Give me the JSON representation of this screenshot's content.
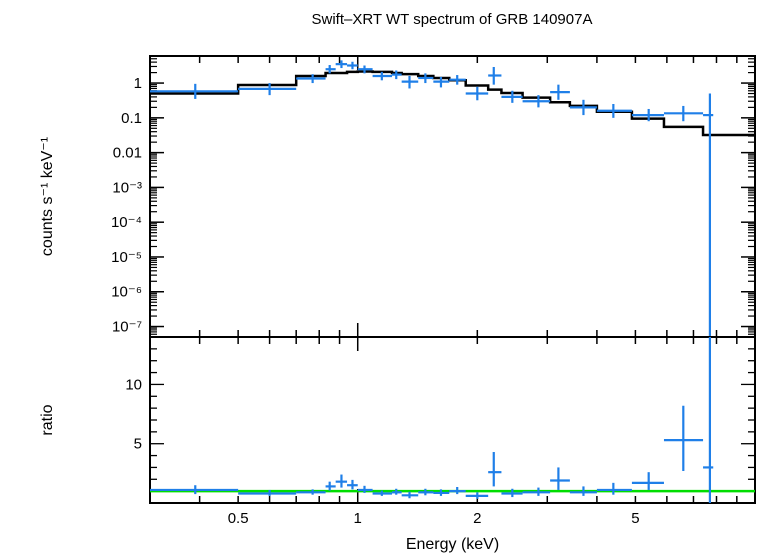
{
  "chart_data": [
    {
      "type": "line",
      "panel": "spectrum",
      "title": "Swift–XRT WT spectrum of GRB 140907A",
      "xlabel": "Energy (keV)",
      "ylabel": "counts s⁻¹ keV⁻¹",
      "x_scale": "log",
      "y_scale": "log",
      "xlim": [
        0.3,
        10
      ],
      "ylim": [
        5e-08,
        6
      ],
      "y_ticks": [
        {
          "value": 1,
          "label": "1"
        },
        {
          "value": 0.1,
          "label": "0.1"
        },
        {
          "value": 0.01,
          "label": "0.01"
        },
        {
          "value": 0.001,
          "label": "10⁻³"
        },
        {
          "value": 0.0001,
          "label": "10⁻⁴"
        },
        {
          "value": 1e-05,
          "label": "10⁻⁵"
        },
        {
          "value": 1e-06,
          "label": "10⁻⁶"
        },
        {
          "value": 1e-07,
          "label": "10⁻⁷"
        }
      ],
      "grid": false,
      "colors": {
        "data": "#1f7fe8",
        "model": "#000000"
      },
      "data_points": [
        {
          "x": 0.39,
          "xlo": 0.3,
          "xhi": 0.5,
          "y": 0.58,
          "ylo": 0.35,
          "yhi": 0.95
        },
        {
          "x": 0.6,
          "xlo": 0.5,
          "xhi": 0.7,
          "y": 0.68,
          "ylo": 0.45,
          "yhi": 1.0
        },
        {
          "x": 0.77,
          "xlo": 0.7,
          "xhi": 0.83,
          "y": 1.35,
          "ylo": 1.0,
          "yhi": 1.8
        },
        {
          "x": 0.85,
          "xlo": 0.83,
          "xhi": 0.88,
          "y": 2.5,
          "ylo": 1.9,
          "yhi": 3.3
        },
        {
          "x": 0.91,
          "xlo": 0.88,
          "xhi": 0.94,
          "y": 3.5,
          "ylo": 2.7,
          "yhi": 4.5
        },
        {
          "x": 0.97,
          "xlo": 0.94,
          "xhi": 1.0,
          "y": 3.2,
          "ylo": 2.5,
          "yhi": 4.1
        },
        {
          "x": 1.04,
          "xlo": 1.0,
          "xhi": 1.09,
          "y": 2.5,
          "ylo": 1.9,
          "yhi": 3.2
        },
        {
          "x": 1.15,
          "xlo": 1.09,
          "xhi": 1.22,
          "y": 1.6,
          "ylo": 1.2,
          "yhi": 2.1
        },
        {
          "x": 1.25,
          "xlo": 1.22,
          "xhi": 1.29,
          "y": 1.75,
          "ylo": 1.3,
          "yhi": 2.3
        },
        {
          "x": 1.35,
          "xlo": 1.29,
          "xhi": 1.42,
          "y": 1.1,
          "ylo": 0.7,
          "yhi": 1.6
        },
        {
          "x": 1.48,
          "xlo": 1.42,
          "xhi": 1.55,
          "y": 1.4,
          "ylo": 1.0,
          "yhi": 1.9
        },
        {
          "x": 1.62,
          "xlo": 1.55,
          "xhi": 1.7,
          "y": 1.1,
          "ylo": 0.75,
          "yhi": 1.5
        },
        {
          "x": 1.78,
          "xlo": 1.7,
          "xhi": 1.87,
          "y": 1.25,
          "ylo": 0.9,
          "yhi": 1.7
        },
        {
          "x": 2.0,
          "xlo": 1.87,
          "xhi": 2.13,
          "y": 0.5,
          "ylo": 0.32,
          "yhi": 0.78
        },
        {
          "x": 2.2,
          "xlo": 2.13,
          "xhi": 2.3,
          "y": 1.65,
          "ylo": 0.9,
          "yhi": 2.9
        },
        {
          "x": 2.45,
          "xlo": 2.3,
          "xhi": 2.6,
          "y": 0.4,
          "ylo": 0.27,
          "yhi": 0.6
        },
        {
          "x": 2.85,
          "xlo": 2.6,
          "xhi": 3.05,
          "y": 0.3,
          "ylo": 0.2,
          "yhi": 0.45
        },
        {
          "x": 3.2,
          "xlo": 3.05,
          "xhi": 3.42,
          "y": 0.55,
          "ylo": 0.33,
          "yhi": 0.9
        },
        {
          "x": 3.7,
          "xlo": 3.42,
          "xhi": 4.0,
          "y": 0.2,
          "ylo": 0.12,
          "yhi": 0.33
        },
        {
          "x": 4.4,
          "xlo": 4.0,
          "xhi": 4.9,
          "y": 0.16,
          "ylo": 0.1,
          "yhi": 0.25
        },
        {
          "x": 5.4,
          "xlo": 4.9,
          "xhi": 5.9,
          "y": 0.12,
          "ylo": 0.08,
          "yhi": 0.18
        },
        {
          "x": 6.6,
          "xlo": 5.9,
          "xhi": 7.4,
          "y": 0.135,
          "ylo": 0.08,
          "yhi": 0.22
        },
        {
          "x": 7.7,
          "xlo": 7.4,
          "xhi": 7.85,
          "y": 0.12,
          "ylo": 5e-08,
          "yhi": 0.5
        }
      ],
      "model_steps": [
        {
          "x": 0.3,
          "y": 0.5
        },
        {
          "x": 0.5,
          "y": 0.88
        },
        {
          "x": 0.7,
          "y": 1.6
        },
        {
          "x": 0.83,
          "y": 1.95
        },
        {
          "x": 0.94,
          "y": 2.1
        },
        {
          "x": 1.0,
          "y": 2.15
        },
        {
          "x": 1.09,
          "y": 2.1
        },
        {
          "x": 1.22,
          "y": 1.95
        },
        {
          "x": 1.29,
          "y": 1.8
        },
        {
          "x": 1.42,
          "y": 1.6
        },
        {
          "x": 1.55,
          "y": 1.4
        },
        {
          "x": 1.7,
          "y": 1.2
        },
        {
          "x": 1.87,
          "y": 0.85
        },
        {
          "x": 2.13,
          "y": 0.65
        },
        {
          "x": 2.3,
          "y": 0.52
        },
        {
          "x": 2.6,
          "y": 0.38
        },
        {
          "x": 3.05,
          "y": 0.28
        },
        {
          "x": 3.42,
          "y": 0.22
        },
        {
          "x": 4.0,
          "y": 0.15
        },
        {
          "x": 4.9,
          "y": 0.095
        },
        {
          "x": 5.9,
          "y": 0.055
        },
        {
          "x": 7.4,
          "y": 0.032
        },
        {
          "x": 7.85,
          "y": 0.032
        }
      ]
    },
    {
      "type": "scatter",
      "panel": "ratio",
      "xlabel": "Energy (keV)",
      "ylabel": "ratio",
      "x_scale": "log",
      "xlim": [
        0.3,
        10
      ],
      "ylim": [
        0,
        14
      ],
      "y_ticks": [
        {
          "value": 5,
          "label": "5"
        },
        {
          "value": 10,
          "label": "10"
        }
      ],
      "x_ticks": [
        {
          "value": 0.5,
          "label": "0.5"
        },
        {
          "value": 1,
          "label": "1"
        },
        {
          "value": 2,
          "label": "2"
        },
        {
          "value": 5,
          "label": "5"
        }
      ],
      "reference_line": {
        "y": 1,
        "color": "#00dd00"
      },
      "colors": {
        "data": "#1f7fe8"
      },
      "data_points": [
        {
          "x": 0.39,
          "xlo": 0.3,
          "xhi": 0.5,
          "y": 1.1,
          "ylo": 0.75,
          "yhi": 1.5
        },
        {
          "x": 0.6,
          "xlo": 0.5,
          "xhi": 0.7,
          "y": 0.8,
          "ylo": 0.6,
          "yhi": 1.1
        },
        {
          "x": 0.77,
          "xlo": 0.7,
          "xhi": 0.83,
          "y": 0.9,
          "ylo": 0.7,
          "yhi": 1.15
        },
        {
          "x": 0.85,
          "xlo": 0.83,
          "xhi": 0.88,
          "y": 1.4,
          "ylo": 1.05,
          "yhi": 1.8
        },
        {
          "x": 0.91,
          "xlo": 0.88,
          "xhi": 0.94,
          "y": 1.8,
          "ylo": 1.3,
          "yhi": 2.4
        },
        {
          "x": 0.97,
          "xlo": 0.94,
          "xhi": 1.0,
          "y": 1.5,
          "ylo": 1.15,
          "yhi": 1.95
        },
        {
          "x": 1.04,
          "xlo": 1.0,
          "xhi": 1.09,
          "y": 1.1,
          "ylo": 0.85,
          "yhi": 1.45
        },
        {
          "x": 1.15,
          "xlo": 1.09,
          "xhi": 1.22,
          "y": 0.8,
          "ylo": 0.6,
          "yhi": 1.05
        },
        {
          "x": 1.25,
          "xlo": 1.22,
          "xhi": 1.29,
          "y": 0.9,
          "ylo": 0.7,
          "yhi": 1.2
        },
        {
          "x": 1.35,
          "xlo": 1.29,
          "xhi": 1.42,
          "y": 0.65,
          "ylo": 0.4,
          "yhi": 0.95
        },
        {
          "x": 1.48,
          "xlo": 1.42,
          "xhi": 1.55,
          "y": 0.9,
          "ylo": 0.65,
          "yhi": 1.2
        },
        {
          "x": 1.62,
          "xlo": 1.55,
          "xhi": 1.7,
          "y": 0.85,
          "ylo": 0.6,
          "yhi": 1.15
        },
        {
          "x": 1.78,
          "xlo": 1.7,
          "xhi": 1.87,
          "y": 1.0,
          "ylo": 0.75,
          "yhi": 1.35
        },
        {
          "x": 2.0,
          "xlo": 1.87,
          "xhi": 2.13,
          "y": 0.6,
          "ylo": 0.35,
          "yhi": 0.9
        },
        {
          "x": 2.2,
          "xlo": 2.13,
          "xhi": 2.3,
          "y": 2.6,
          "ylo": 1.4,
          "yhi": 4.3
        },
        {
          "x": 2.45,
          "xlo": 2.3,
          "xhi": 2.6,
          "y": 0.8,
          "ylo": 0.5,
          "yhi": 1.2
        },
        {
          "x": 2.85,
          "xlo": 2.6,
          "xhi": 3.05,
          "y": 0.9,
          "ylo": 0.6,
          "yhi": 1.3
        },
        {
          "x": 3.2,
          "xlo": 3.05,
          "xhi": 3.42,
          "y": 1.9,
          "ylo": 1.1,
          "yhi": 3.0
        },
        {
          "x": 3.7,
          "xlo": 3.42,
          "xhi": 4.0,
          "y": 0.9,
          "ylo": 0.6,
          "yhi": 1.4
        },
        {
          "x": 4.4,
          "xlo": 4.0,
          "xhi": 4.9,
          "y": 1.1,
          "ylo": 0.7,
          "yhi": 1.7
        },
        {
          "x": 5.4,
          "xlo": 4.9,
          "xhi": 5.9,
          "y": 1.7,
          "ylo": 1.1,
          "yhi": 2.6
        },
        {
          "x": 6.6,
          "xlo": 5.9,
          "xhi": 7.4,
          "y": 5.3,
          "ylo": 2.7,
          "yhi": 8.2
        },
        {
          "x": 7.7,
          "xlo": 7.4,
          "xhi": 7.85,
          "y": 3.0,
          "ylo": 0.0,
          "yhi": 14.0
        }
      ]
    }
  ]
}
